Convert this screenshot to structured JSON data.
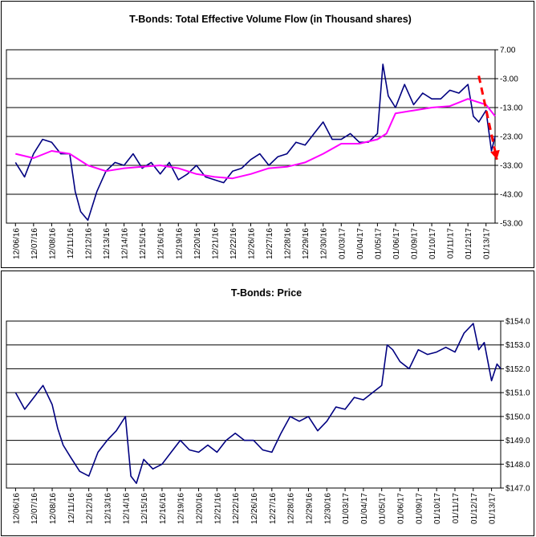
{
  "chart_data": [
    {
      "type": "line",
      "title": "T-Bonds: Total Effective Volume Flow (in Thousand shares)",
      "xlabel": "",
      "ylabel": "",
      "y_ticks": [
        "7.00",
        "-3.00",
        "-13.00",
        "-23.00",
        "-33.00",
        "-43.00",
        "-53.00"
      ],
      "ylim": [
        -53,
        7
      ],
      "x_ticks": [
        "12/06/16",
        "12/07/16",
        "12/08/16",
        "12/11/16",
        "12/12/16",
        "12/13/16",
        "12/14/16",
        "12/15/16",
        "12/16/16",
        "12/19/16",
        "12/20/16",
        "12/21/16",
        "12/22/16",
        "12/26/16",
        "12/27/16",
        "12/28/16",
        "12/29/16",
        "12/30/16",
        "01/03/17",
        "01/04/17",
        "01/05/17",
        "01/06/17",
        "01/09/17",
        "01/10/17",
        "01/11/17",
        "01/12/17",
        "01/13/17"
      ],
      "grid": true,
      "series": [
        {
          "color": "#000080",
          "x": [
            0,
            0.5,
            1,
            1.5,
            2,
            2.5,
            3,
            3.3,
            3.6,
            4,
            4.5,
            5,
            5.5,
            6,
            6.5,
            7,
            7.5,
            8,
            8.5,
            9,
            9.5,
            10,
            10.5,
            11,
            11.5,
            12,
            12.5,
            13,
            13.5,
            14,
            14.5,
            15,
            15.5,
            16,
            16.5,
            17,
            17.5,
            18,
            18.5,
            19,
            19.5,
            20,
            20.3,
            20.6,
            21,
            21.5,
            22,
            22.5,
            23,
            23.5,
            24,
            24.5,
            25,
            25.3,
            25.6,
            26,
            26.3,
            26.5
          ],
          "y": [
            -32,
            -37,
            -29,
            -24,
            -25,
            -29,
            -29,
            -42,
            -49,
            -52,
            -42,
            -35,
            -32,
            -33,
            -29,
            -34,
            -32,
            -36,
            -32,
            -38,
            -36,
            -33,
            -37,
            -38,
            -39,
            -35,
            -34,
            -31,
            -29,
            -33,
            -30,
            -29,
            -25,
            -26,
            -22,
            -18,
            -24,
            -24,
            -22,
            -25,
            -25,
            -22,
            2,
            -9,
            -13,
            -5,
            -12,
            -8,
            -10,
            -10,
            -7,
            -8,
            -5,
            -16,
            -18,
            -14,
            -28,
            -23
          ]
        },
        {
          "color": "#ff00ff",
          "x": [
            0,
            1,
            2,
            3,
            4,
            5,
            6,
            7,
            8,
            9,
            10,
            11,
            12,
            13,
            14,
            15,
            16,
            17,
            18,
            19,
            20,
            20.5,
            21,
            22,
            23,
            24,
            25,
            25.5,
            26,
            26.5
          ],
          "y": [
            -29,
            -30.5,
            -28,
            -29,
            -33,
            -35,
            -34,
            -33.5,
            -33,
            -34,
            -36,
            -37,
            -37.5,
            -36,
            -34,
            -33.5,
            -32,
            -29,
            -25.5,
            -25.5,
            -24,
            -22,
            -15,
            -14,
            -13,
            -12.5,
            -10,
            -11,
            -12,
            -16
          ]
        },
        {
          "color": "#ff0000",
          "dashed": true,
          "x": [
            25.6,
            26.6
          ],
          "y": [
            -2,
            -31
          ]
        }
      ]
    },
    {
      "type": "line",
      "title": "T-Bonds: Price",
      "xlabel": "",
      "ylabel": "",
      "y_ticks": [
        "$154.0",
        "$153.0",
        "$152.0",
        "$151.0",
        "$150.0",
        "$149.0",
        "$148.0",
        "$147.0"
      ],
      "ylim": [
        147,
        154
      ],
      "x_ticks": [
        "12/06/16",
        "12/07/16",
        "12/08/16",
        "12/11/16",
        "12/12/16",
        "12/13/16",
        "12/14/16",
        "12/15/16",
        "12/16/16",
        "12/19/16",
        "12/20/16",
        "12/21/16",
        "12/22/16",
        "12/26/16",
        "12/27/16",
        "12/28/16",
        "12/29/16",
        "12/30/16",
        "01/03/17",
        "01/04/17",
        "01/05/17",
        "01/06/17",
        "01/09/17",
        "01/10/17",
        "01/11/17",
        "01/12/17",
        "01/13/17"
      ],
      "grid": true,
      "series": [
        {
          "color": "#000080",
          "x": [
            0,
            0.5,
            1,
            1.5,
            2,
            2.3,
            2.6,
            3,
            3.5,
            4,
            4.5,
            5,
            5.5,
            6,
            6.3,
            6.6,
            7,
            7.5,
            8,
            8.5,
            9,
            9.5,
            10,
            10.5,
            11,
            11.5,
            12,
            12.5,
            13,
            13.5,
            14,
            14.5,
            15,
            15.5,
            16,
            16.5,
            17,
            17.5,
            18,
            18.5,
            19,
            19.5,
            20,
            20.3,
            20.6,
            21,
            21.5,
            22,
            22.5,
            23,
            23.5,
            24,
            24.5,
            25,
            25.3,
            25.6,
            26,
            26.3,
            26.5
          ],
          "y": [
            151,
            150.3,
            150.8,
            151.3,
            150.5,
            149.5,
            148.8,
            148.3,
            147.7,
            147.5,
            148.5,
            149,
            149.4,
            150,
            147.5,
            147.2,
            148.2,
            147.8,
            148,
            148.5,
            149,
            148.6,
            148.5,
            148.8,
            148.5,
            149,
            149.3,
            149,
            149,
            148.6,
            148.5,
            149.3,
            150,
            149.8,
            150,
            149.4,
            149.8,
            150.4,
            150.3,
            150.8,
            150.7,
            151,
            151.3,
            153,
            152.8,
            152.3,
            152,
            152.8,
            152.6,
            152.7,
            152.9,
            152.7,
            153.5,
            153.9,
            152.8,
            153.1,
            151.5,
            152.2,
            152
          ]
        }
      ]
    }
  ]
}
